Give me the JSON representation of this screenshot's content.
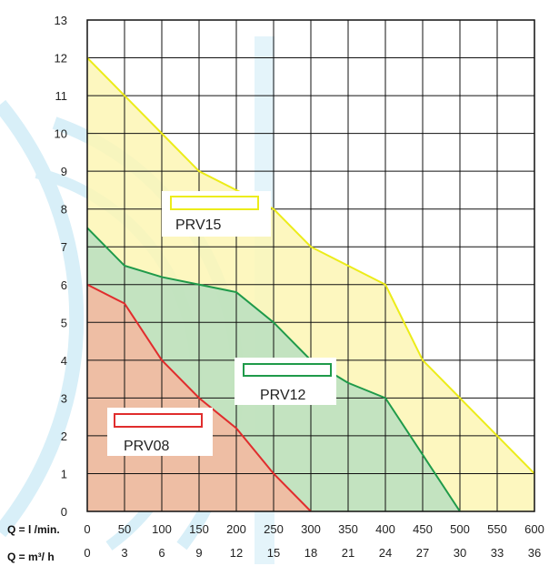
{
  "chart_data": {
    "type": "area",
    "xlabel_primary": "Q = l /min.",
    "xlabel_secondary": "Q = m³/ h",
    "x_primary_ticks": [
      0,
      50,
      100,
      150,
      200,
      250,
      300,
      350,
      400,
      450,
      500,
      550,
      600
    ],
    "x_secondary_ticks": [
      0,
      3,
      6,
      9,
      12,
      15,
      18,
      21,
      24,
      27,
      30,
      33,
      36
    ],
    "y_ticks": [
      0,
      1,
      2,
      3,
      4,
      5,
      6,
      7,
      8,
      9,
      10,
      11,
      12,
      13
    ],
    "xlim": [
      0,
      600
    ],
    "ylim": [
      0,
      13
    ],
    "grid": true,
    "series": [
      {
        "name": "PRV15",
        "line_color": "#ecec1a",
        "fill_color": "#fdf6b4",
        "x": [
          0,
          50,
          100,
          150,
          200,
          250,
          300,
          350,
          400,
          450,
          500,
          550,
          600
        ],
        "y": [
          12,
          11,
          10,
          9,
          8.5,
          8,
          7,
          6.5,
          6,
          4,
          3,
          2,
          1
        ]
      },
      {
        "name": "PRV12",
        "line_color": "#1f9a4a",
        "fill_color": "#b9dfc0",
        "x": [
          0,
          50,
          100,
          150,
          200,
          250,
          300,
          350,
          400,
          450,
          500
        ],
        "y": [
          7.5,
          6.5,
          6.2,
          6,
          5.8,
          5,
          4,
          3.4,
          3,
          1.5,
          0
        ]
      },
      {
        "name": "PRV08",
        "line_color": "#e02d2d",
        "fill_color": "#f6b79f",
        "x": [
          0,
          50,
          100,
          150,
          200,
          250,
          300
        ],
        "y": [
          6,
          5.5,
          4,
          3,
          2.2,
          1,
          0
        ]
      }
    ]
  }
}
